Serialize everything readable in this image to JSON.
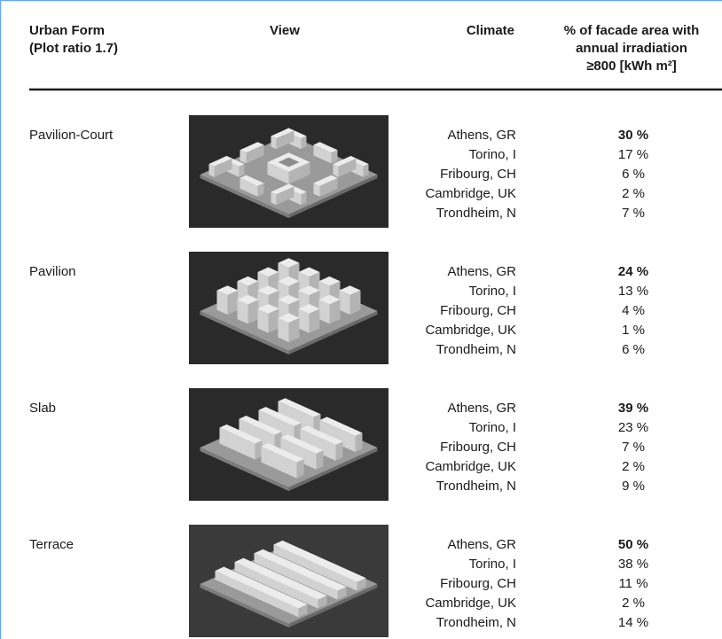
{
  "header": {
    "urban_form": [
      "Urban Form",
      "(Plot ratio 1.7)"
    ],
    "view": "View",
    "climate": "Climate",
    "facade": [
      "% of facade area with",
      "annual irradiation",
      "≥800 [kWh m²]"
    ]
  },
  "rows": [
    {
      "form": "Pavilion-Court",
      "climates": [
        "Athens, GR",
        "Torino, I",
        "Fribourg, CH",
        "Cambridge, UK",
        "Trondheim, N"
      ],
      "values": [
        "30 %",
        "17 %",
        "6 %",
        "2 %",
        "7 %"
      ]
    },
    {
      "form": "Pavilion",
      "climates": [
        "Athens, GR",
        "Torino, I",
        "Fribourg, CH",
        "Cambridge, UK",
        "Trondheim, N"
      ],
      "values": [
        "24 %",
        "13 %",
        "4 %",
        "1 %",
        "6 %"
      ]
    },
    {
      "form": "Slab",
      "climates": [
        "Athens, GR",
        "Torino, I",
        "Fribourg, CH",
        "Cambridge, UK",
        "Trondheim, N"
      ],
      "values": [
        "39 %",
        "23 %",
        "7 %",
        "2 %",
        "9 %"
      ]
    },
    {
      "form": "Terrace",
      "climates": [
        "Athens, GR",
        "Torino, I",
        "Fribourg, CH",
        "Cambridge, UK",
        "Trondheim, N"
      ],
      "values": [
        "50 %",
        "38 %",
        "11 %",
        "2 %",
        "14 %"
      ]
    }
  ]
}
